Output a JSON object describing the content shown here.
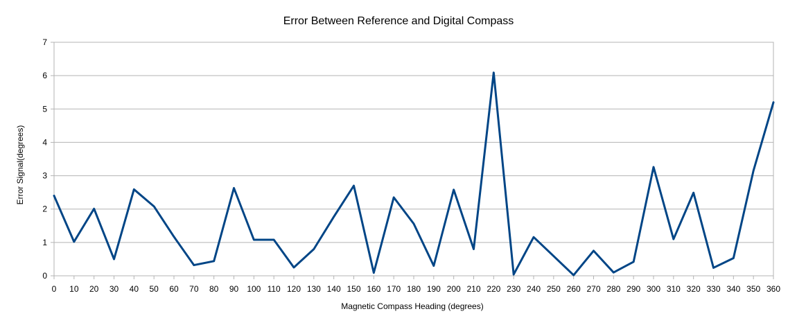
{
  "chart_data": {
    "type": "line",
    "title": "Error Between Reference and Digital Compass",
    "xlabel": "Magnetic Compass Heading (degrees)",
    "ylabel": "Error Signal(degrees)",
    "x": [
      0,
      10,
      20,
      30,
      40,
      50,
      60,
      70,
      80,
      90,
      100,
      110,
      120,
      130,
      140,
      150,
      160,
      170,
      180,
      190,
      200,
      210,
      220,
      230,
      240,
      250,
      260,
      270,
      280,
      290,
      300,
      310,
      320,
      330,
      340,
      350,
      360
    ],
    "series": [
      {
        "values": [
          2.4,
          1.02,
          2.01,
          0.5,
          2.59,
          2.08,
          1.17,
          0.32,
          0.44,
          2.63,
          1.08,
          1.08,
          0.25,
          0.8,
          1.77,
          2.7,
          0.09,
          2.35,
          1.56,
          0.3,
          2.58,
          0.8,
          6.09,
          0.04,
          1.16,
          0.59,
          0.02,
          0.75,
          0.1,
          0.42,
          3.26,
          1.1,
          2.49,
          0.24,
          0.53,
          3.15,
          5.2
        ],
        "color": "#004586"
      }
    ],
    "xlim": [
      0,
      360
    ],
    "ylim": [
      0,
      7
    ],
    "x_ticks": [
      "0",
      "10",
      "20",
      "30",
      "40",
      "50",
      "60",
      "70",
      "80",
      "90",
      "100",
      "110",
      "120",
      "130",
      "140",
      "150",
      "160",
      "170",
      "180",
      "190",
      "200",
      "210",
      "220",
      "230",
      "240",
      "250",
      "260",
      "270",
      "280",
      "290",
      "300",
      "310",
      "320",
      "330",
      "340",
      "350",
      "360"
    ],
    "y_ticks": [
      "0",
      "1",
      "2",
      "3",
      "4",
      "5",
      "6",
      "7"
    ],
    "grid": true,
    "legend": "none"
  }
}
